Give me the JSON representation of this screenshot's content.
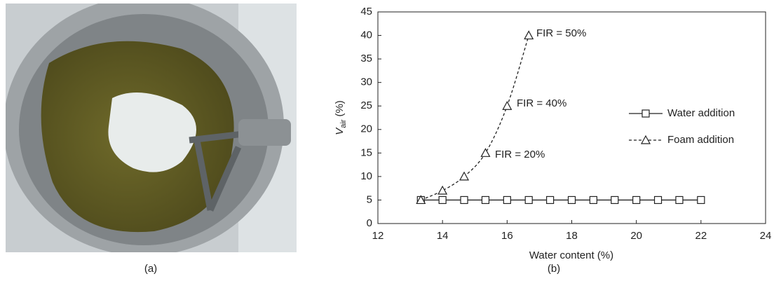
{
  "photo": {
    "label": "(a)"
  },
  "chart_data": {
    "type": "line",
    "panel_label": "(b)",
    "xlabel": "Water content (%)",
    "ylabel": "V",
    "ylabel_subscript": "air",
    "ylabel_unit": "(%)",
    "xlim": [
      12,
      24
    ],
    "xticks": [
      12,
      14,
      16,
      18,
      20,
      22,
      24
    ],
    "ylim": [
      0,
      45
    ],
    "yticks": [
      0,
      5,
      10,
      15,
      20,
      25,
      30,
      35,
      40,
      45
    ],
    "legend": "right",
    "series": [
      {
        "name": "Water addition",
        "color": "#222222",
        "marker": "square",
        "dash": false,
        "x": [
          13.33,
          14,
          14.67,
          15.33,
          16,
          16.67,
          17.33,
          18,
          18.67,
          19.33,
          20,
          20.67,
          21.33,
          22
        ],
        "values": [
          5,
          5,
          5,
          5,
          5,
          5,
          5,
          5,
          5,
          5,
          5,
          5,
          5,
          5
        ]
      },
      {
        "name": "Foam addition",
        "color": "#222222",
        "marker": "triangle",
        "dash": true,
        "x": [
          13.33,
          14,
          14.67,
          15.33,
          16,
          16.67
        ],
        "values": [
          5,
          7,
          10,
          15,
          25,
          40
        ]
      }
    ],
    "annotations": [
      "FIR = 20%",
      "FIR = 40%",
      "FIR = 50%"
    ]
  }
}
